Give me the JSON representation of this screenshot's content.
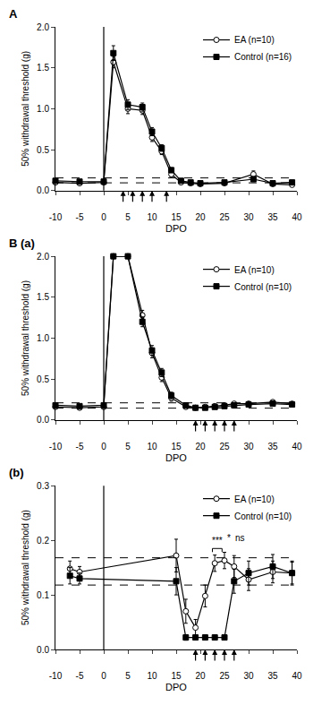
{
  "chart_data": [
    {
      "type": "line",
      "title": "A",
      "xlabel": "DPO",
      "ylabel": "50% withdrawal threshold (g)",
      "xlim": [
        -10,
        40
      ],
      "ylim": [
        0,
        2.0
      ],
      "xticks": [
        -10,
        -5,
        0,
        5,
        10,
        15,
        20,
        25,
        30,
        35,
        40
      ],
      "yticks": [
        {
          "value": 0.0,
          "label": "0.0"
        },
        0.5,
        {
          "value": 1.0,
          "label": "1.0"
        },
        1.5,
        {
          "value": 2.0,
          "label": "2.0"
        }
      ],
      "grid": false,
      "legend": "upper right",
      "reference_lines": [
        {
          "y": 0.155,
          "line_style": "dashed"
        },
        {
          "y": 0.095,
          "line_style": "dashed"
        }
      ],
      "vline": {
        "x": 0,
        "line_style": "solid"
      },
      "arrows_x": [
        4,
        6,
        8,
        10,
        13
      ],
      "series": [
        {
          "name": "EA (n=10)",
          "color": "black",
          "marker": "circle-open",
          "line_style": "solid",
          "x": [
            -10,
            -5,
            0,
            2,
            5,
            8,
            10,
            12,
            14,
            16,
            18,
            20,
            25,
            31,
            35,
            39
          ],
          "values": [
            0.1,
            0.09,
            0.1,
            1.57,
            1.0,
            0.98,
            0.65,
            0.48,
            0.2,
            0.1,
            0.09,
            0.08,
            0.09,
            0.2,
            0.08,
            0.07
          ],
          "errors": [
            0.015,
            0.01,
            0.01,
            0.07,
            0.06,
            0.05,
            0.05,
            0.04,
            0.03,
            0.02,
            0.01,
            0.01,
            0.02,
            0.04,
            0.02,
            0.02
          ]
        },
        {
          "name": "Control (n=16)",
          "color": "black",
          "marker": "square",
          "line_style": "solid",
          "x": [
            -10,
            -5,
            0,
            2,
            5,
            8,
            10,
            12,
            14,
            16,
            18,
            20,
            25,
            31,
            35,
            39
          ],
          "values": [
            0.12,
            0.11,
            0.11,
            1.68,
            1.05,
            1.02,
            0.72,
            0.52,
            0.25,
            0.12,
            0.1,
            0.09,
            0.1,
            0.14,
            0.09,
            0.1
          ],
          "errors": [
            0.015,
            0.01,
            0.01,
            0.09,
            0.06,
            0.05,
            0.05,
            0.04,
            0.03,
            0.02,
            0.01,
            0.01,
            0.02,
            0.03,
            0.02,
            0.02
          ]
        }
      ]
    },
    {
      "type": "line",
      "title": "B (a)",
      "xlabel": "DPO",
      "ylabel": "50% withdrawal threshold (g)",
      "xlim": [
        -10,
        40
      ],
      "ylim": [
        0,
        2.0
      ],
      "xticks": [
        -10,
        -5,
        0,
        5,
        10,
        15,
        20,
        25,
        30,
        35,
        40
      ],
      "yticks": [
        {
          "value": 0.0,
          "label": "0.0"
        },
        0.5,
        {
          "value": 1.0,
          "label": "1.0"
        },
        1.5,
        {
          "value": 2.0,
          "label": "2.0"
        }
      ],
      "grid": false,
      "legend": "upper right",
      "reference_lines": [
        {
          "y": 0.21,
          "line_style": "dashed"
        },
        {
          "y": 0.145,
          "line_style": "dashed"
        }
      ],
      "vline": {
        "x": 0,
        "line_style": "solid"
      },
      "arrows_x": [
        19,
        21,
        23,
        25,
        27
      ],
      "series": [
        {
          "name": "EA (n=10)",
          "color": "black",
          "marker": "circle-open",
          "line_style": "solid",
          "x": [
            -10,
            -5,
            0,
            2,
            5,
            8,
            10,
            12,
            14,
            17,
            19,
            21,
            23,
            25,
            27,
            30,
            35,
            39
          ],
          "values": [
            0.16,
            0.15,
            0.16,
            2.0,
            2.0,
            1.28,
            0.82,
            0.52,
            0.27,
            0.16,
            0.15,
            0.16,
            0.17,
            0.18,
            0.2,
            0.2,
            0.22,
            0.2
          ],
          "errors": [
            0.02,
            0.01,
            0.01,
            0.0,
            0.0,
            0.06,
            0.06,
            0.05,
            0.04,
            0.02,
            0.02,
            0.02,
            0.02,
            0.02,
            0.02,
            0.02,
            0.02,
            0.02
          ]
        },
        {
          "name": "Control (n=10)",
          "color": "black",
          "marker": "square",
          "line_style": "solid",
          "x": [
            -10,
            -5,
            0,
            2,
            5,
            8,
            10,
            12,
            14,
            17,
            19,
            21,
            23,
            25,
            27,
            30,
            35,
            39
          ],
          "values": [
            0.18,
            0.17,
            0.18,
            2.0,
            2.0,
            1.2,
            0.85,
            0.58,
            0.3,
            0.18,
            0.15,
            0.15,
            0.16,
            0.17,
            0.18,
            0.19,
            0.2,
            0.19
          ],
          "errors": [
            0.02,
            0.01,
            0.01,
            0.0,
            0.0,
            0.06,
            0.06,
            0.05,
            0.04,
            0.02,
            0.02,
            0.02,
            0.02,
            0.02,
            0.02,
            0.02,
            0.02,
            0.02
          ]
        }
      ]
    },
    {
      "type": "line",
      "title": "(b)",
      "xlabel": "DPO",
      "ylabel": "50% withdrawal threshold (g)",
      "xlim": [
        -10,
        40
      ],
      "ylim": [
        0,
        0.3
      ],
      "xticks": [
        -10,
        -5,
        0,
        5,
        10,
        15,
        20,
        25,
        30,
        35,
        40
      ],
      "yticks": [
        {
          "value": 0.0,
          "label": "0.0"
        },
        0.1,
        0.2,
        0.3
      ],
      "grid": false,
      "legend": "upper right",
      "reference_lines": [
        {
          "y": 0.168,
          "line_style": "dashed"
        },
        {
          "y": 0.118,
          "line_style": "dashed"
        }
      ],
      "vline": {
        "x": 0,
        "line_style": "solid"
      },
      "arrows_x": [
        19,
        21,
        23,
        25,
        27
      ],
      "series": [
        {
          "name": "EA (n=10)",
          "color": "black",
          "marker": "circle-open",
          "line_style": "solid",
          "x": [
            -7,
            -5,
            15,
            17,
            19,
            21,
            23,
            25,
            27,
            30,
            35,
            39
          ],
          "values": [
            0.148,
            0.142,
            0.172,
            0.07,
            0.04,
            0.098,
            0.158,
            0.163,
            0.152,
            0.128,
            0.142,
            0.14
          ],
          "errors": [
            0.014,
            0.01,
            0.03,
            0.022,
            0.015,
            0.02,
            0.015,
            0.015,
            0.02,
            0.02,
            0.02,
            0.02
          ]
        },
        {
          "name": "Control (n=10)",
          "color": "black",
          "marker": "square",
          "line_style": "solid",
          "x": [
            -7,
            -5,
            15,
            17,
            19,
            21,
            23,
            25,
            27,
            30,
            35,
            39
          ],
          "values": [
            0.135,
            0.13,
            0.125,
            0.022,
            0.022,
            0.022,
            0.022,
            0.022,
            0.125,
            0.14,
            0.152,
            0.14
          ],
          "errors": [
            0.015,
            0.01,
            0.025,
            0.005,
            0.004,
            0.004,
            0.004,
            0.004,
            0.022,
            0.022,
            0.022,
            0.022
          ]
        }
      ],
      "annotations": [
        {
          "text": "***",
          "x": [
            22.5,
            24.5
          ],
          "y": 0.185,
          "bracket": true
        },
        {
          "text": "*",
          "x": 26.0,
          "y": 0.192
        },
        {
          "text": "ns",
          "x": 28.2,
          "y": 0.192
        }
      ]
    }
  ]
}
